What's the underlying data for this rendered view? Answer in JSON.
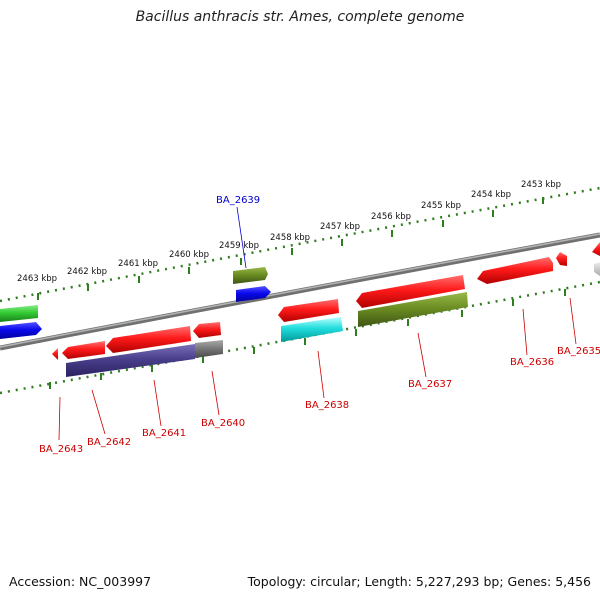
{
  "title": "Bacillus anthracis str. Ames, complete genome",
  "footer": {
    "accession": "Accession: NC_003997",
    "summary": "Topology: circular; Length: 5,227,293 bp; Genes: 5,456"
  },
  "scale_labels": [
    "2453 kbp",
    "2454 kbp",
    "2455 kbp",
    "2456 kbp",
    "2457 kbp",
    "2458 kbp",
    "2459 kbp",
    "2460 kbp",
    "2461 kbp",
    "2462 kbp",
    "2463 kbp"
  ],
  "gene_labels": [
    {
      "id": "BA_2639",
      "color": "#0000cc"
    },
    {
      "id": "BA_2635",
      "color": "#cc0000"
    },
    {
      "id": "BA_2636",
      "color": "#cc0000"
    },
    {
      "id": "BA_2637",
      "color": "#cc0000"
    },
    {
      "id": "BA_2638",
      "color": "#cc0000"
    },
    {
      "id": "BA_2640",
      "color": "#cc0000"
    },
    {
      "id": "BA_2641",
      "color": "#cc0000"
    },
    {
      "id": "BA_2642",
      "color": "#cc0000"
    },
    {
      "id": "BA_2643",
      "color": "#cc0000"
    }
  ],
  "colors": {
    "scale_ticks": "#2e7d1e",
    "backbone": "#808080",
    "gene_red": "#ff1a1a",
    "gene_blue": "#0a0aee",
    "gene_green": "#33cc33",
    "gene_olive": "#6b8e23",
    "gene_cyan": "#22dddd",
    "gene_purple": "#4a3f8c",
    "gene_gray": "#7a7a7a"
  }
}
